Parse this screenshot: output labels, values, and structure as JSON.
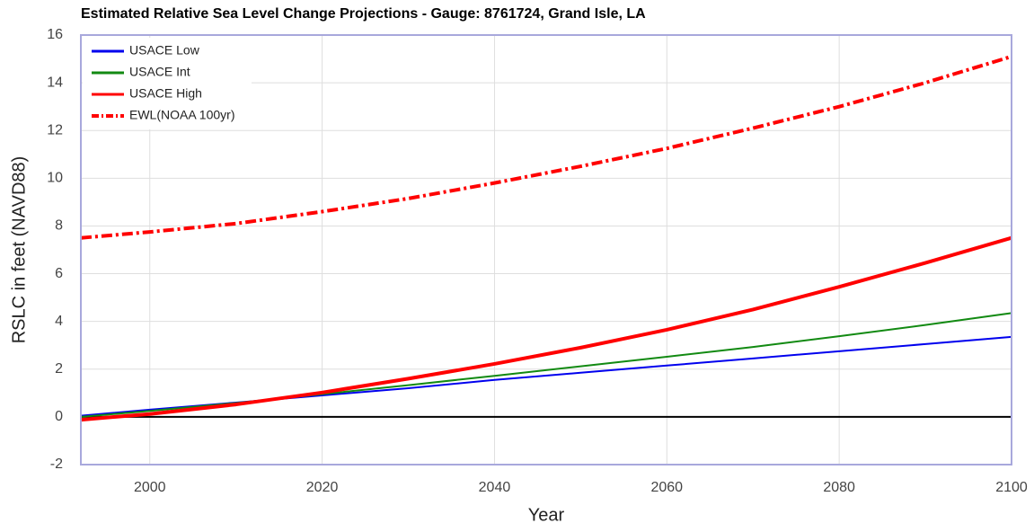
{
  "chart_data": {
    "type": "line",
    "title": "Estimated Relative Sea Level Change Projections - Gauge: 8761724, Grand Isle, LA",
    "x_label": "Year",
    "y_label": "RSLC in feet (NAVD88)",
    "x": [
      1992,
      2000,
      2010,
      2020,
      2030,
      2040,
      2050,
      2060,
      2070,
      2080,
      2090,
      2100
    ],
    "series": [
      {
        "name": "USACE Low",
        "color": "#0000ee",
        "values": [
          0.05,
          0.3,
          0.6,
          0.9,
          1.2,
          1.55,
          1.85,
          2.15,
          2.45,
          2.75,
          3.05,
          3.35
        ]
      },
      {
        "name": "USACE Int",
        "color": "#128a12",
        "values": [
          0.0,
          0.25,
          0.58,
          0.95,
          1.33,
          1.72,
          2.12,
          2.52,
          2.93,
          3.38,
          3.85,
          4.35
        ]
      },
      {
        "name": "USACE High",
        "color": "#ff0000",
        "values": [
          -0.12,
          0.12,
          0.52,
          1.02,
          1.6,
          2.22,
          2.9,
          3.65,
          4.5,
          5.45,
          6.45,
          7.5
        ]
      },
      {
        "name": "EWL(NOAA 100yr)",
        "color": "#ff0000",
        "dashed": true,
        "values": [
          7.5,
          7.75,
          8.1,
          8.6,
          9.15,
          9.8,
          10.5,
          11.25,
          12.1,
          13.0,
          14.0,
          15.1
        ]
      }
    ],
    "xlim": [
      1992,
      2100
    ],
    "xticks": [
      2000,
      2020,
      2040,
      2060,
      2080,
      2100
    ],
    "ylim": [
      -2,
      16
    ],
    "yticks": [
      -2,
      0,
      2,
      4,
      6,
      8,
      10,
      12,
      14,
      16
    ],
    "grid": true,
    "legend": "upper left"
  }
}
